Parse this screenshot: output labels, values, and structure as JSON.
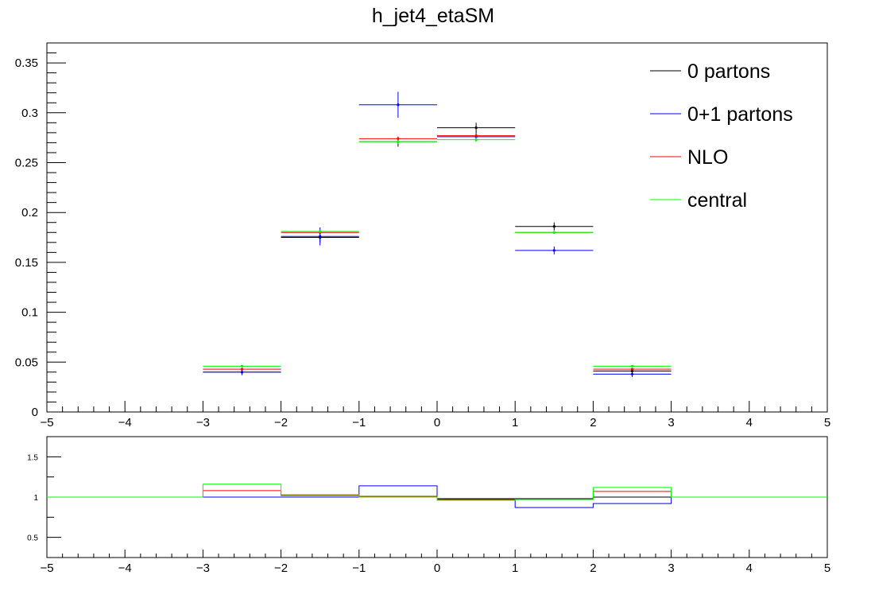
{
  "chart_data": [
    {
      "type": "line",
      "title": "h_jet4_etaSM",
      "xlim": [
        -5,
        5
      ],
      "ylim": [
        0,
        0.37
      ],
      "x_ticks": [
        "−5",
        "−4",
        "−3",
        "−2",
        "−1",
        "0",
        "1",
        "2",
        "3",
        "4",
        "5"
      ],
      "y_ticks": [
        "0",
        "0.05",
        "0.1",
        "0.15",
        "0.2",
        "0.25",
        "0.3",
        "0.35"
      ],
      "bins": [
        [
          -3,
          -2
        ],
        [
          -2,
          -1
        ],
        [
          -1,
          0
        ],
        [
          0,
          1
        ],
        [
          1,
          2
        ],
        [
          2,
          3
        ]
      ],
      "legend_position": "top-right",
      "series": [
        {
          "name": "0 partons",
          "color": "#000000",
          "values": [
            0.04,
            0.175,
            0.271,
            0.285,
            0.186,
            0.041
          ],
          "errors": [
            0.003,
            0.005,
            0.005,
            0.005,
            0.004,
            0.003
          ]
        },
        {
          "name": "0+1 partons",
          "color": "#0000ff",
          "values": [
            0.04,
            0.176,
            0.308,
            0.276,
            0.162,
            0.038
          ],
          "errors": [
            0.003,
            0.009,
            0.013,
            0.005,
            0.004,
            0.003
          ]
        },
        {
          "name": "NLO",
          "color": "#ff0000",
          "values": [
            0.043,
            0.18,
            0.274,
            0.277,
            0.18,
            0.043
          ],
          "errors": [
            0.001,
            0.001,
            0.002,
            0.002,
            0.001,
            0.001
          ]
        },
        {
          "name": "central",
          "color": "#00ff00",
          "values": [
            0.046,
            0.181,
            0.271,
            0.273,
            0.18,
            0.046
          ],
          "errors": [
            0.001,
            0.001,
            0.002,
            0.002,
            0.001,
            0.001
          ]
        }
      ]
    },
    {
      "type": "line",
      "xlim": [
        -5,
        5
      ],
      "ylim": [
        0.25,
        1.75
      ],
      "x_ticks": [
        "−5",
        "−4",
        "−3",
        "−2",
        "−1",
        "0",
        "1",
        "2",
        "3",
        "4",
        "5"
      ],
      "y_ticks": [
        "0.5",
        "1",
        "1.5"
      ],
      "y_tick_values": [
        0.5,
        1,
        1.5
      ],
      "bin_edges": [
        -5,
        -3,
        -2,
        -1,
        0,
        1,
        2,
        3,
        5
      ],
      "series": [
        {
          "name": "0 partons",
          "color": "#000000",
          "values": [
            1,
            1.0,
            1.0,
            1.0,
            0.98,
            0.98,
            1.0,
            1
          ]
        },
        {
          "name": "0+1 partons",
          "color": "#0000ff",
          "values": [
            1,
            1.0,
            1.0,
            1.14,
            0.97,
            0.87,
            0.92,
            1
          ]
        },
        {
          "name": "NLO",
          "color": "#ff0000",
          "values": [
            1,
            1.08,
            1.02,
            1.01,
            0.97,
            0.97,
            1.07,
            1
          ]
        },
        {
          "name": "central",
          "color": "#00ff00",
          "values": [
            1,
            1.16,
            1.03,
            1.0,
            0.96,
            0.97,
            1.12,
            1
          ]
        }
      ]
    }
  ]
}
